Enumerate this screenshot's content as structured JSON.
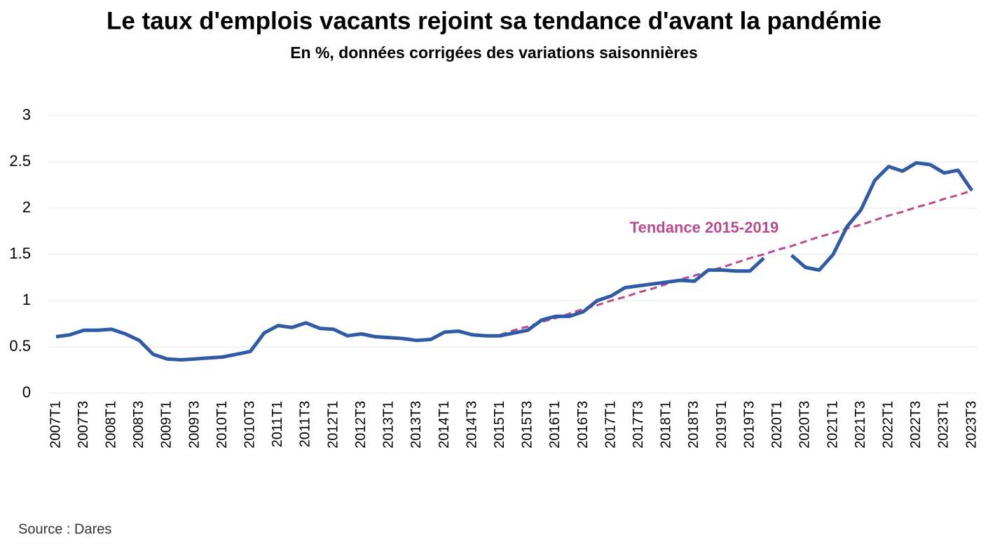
{
  "chart_data": {
    "type": "line",
    "title": "Le taux d'emplois vacants rejoint sa tendance d'avant la pandémie",
    "subtitle": "En %, données corrigées des variations saisonnières",
    "source": "Source : Dares",
    "categories": [
      "2007T1",
      null,
      "2007T3",
      null,
      "2008T1",
      null,
      "2008T3",
      null,
      "2009T1",
      null,
      "2009T3",
      null,
      "2010T1",
      null,
      "2010T3",
      null,
      "2011T1",
      null,
      "2011T3",
      null,
      "2012T1",
      null,
      "2012T3",
      null,
      "2013T1",
      null,
      "2013T3",
      null,
      "2014T1",
      null,
      "2014T3",
      null,
      "2015T1",
      null,
      "2015T3",
      null,
      "2016T1",
      null,
      "2016T3",
      null,
      "2017T1",
      null,
      "2017T3",
      null,
      "2018T1",
      null,
      "2018T3",
      null,
      "2019T1",
      null,
      "2019T3",
      null,
      "2020T1",
      null,
      "2020T3",
      null,
      "2021T1",
      null,
      "2021T3",
      null,
      "2022T1",
      null,
      "2022T3",
      null,
      "2023T1",
      null,
      "2023T3"
    ],
    "series": [
      {
        "name": "Taux d'emplois vacants",
        "color": "#2f5aa6",
        "values": [
          0.61,
          0.63,
          0.68,
          0.68,
          0.69,
          0.64,
          0.57,
          0.42,
          0.37,
          0.36,
          0.37,
          0.38,
          0.39,
          0.42,
          0.45,
          0.65,
          0.73,
          0.71,
          0.76,
          0.7,
          0.69,
          0.62,
          0.64,
          0.61,
          0.6,
          0.59,
          0.57,
          0.58,
          0.66,
          0.67,
          0.63,
          0.62,
          0.62,
          0.65,
          0.68,
          0.79,
          0.83,
          0.83,
          0.88,
          1.0,
          1.05,
          1.14,
          1.16,
          1.18,
          1.2,
          1.22,
          1.21,
          1.33,
          1.33,
          1.32,
          1.32,
          1.46,
          null,
          1.49,
          1.36,
          1.33,
          1.5,
          1.8,
          1.98,
          2.3,
          2.45,
          2.4,
          2.49,
          2.47,
          2.38,
          2.41,
          2.19
        ]
      },
      {
        "name": "Tendance 2015-2019",
        "color": "#b84c8c",
        "dashed": true,
        "values": [
          null,
          null,
          null,
          null,
          null,
          null,
          null,
          null,
          null,
          null,
          null,
          null,
          null,
          null,
          null,
          null,
          null,
          null,
          null,
          null,
          null,
          null,
          null,
          null,
          null,
          null,
          null,
          null,
          null,
          null,
          null,
          null,
          0.63,
          0.68,
          0.72,
          0.77,
          0.81,
          0.86,
          0.91,
          0.95,
          1.0,
          1.04,
          1.09,
          1.13,
          1.18,
          1.23,
          1.27,
          1.32,
          1.36,
          1.41,
          1.46,
          1.5,
          1.55,
          1.59,
          1.64,
          1.69,
          1.73,
          1.78,
          1.82,
          1.87,
          1.92,
          1.96,
          2.01,
          2.05,
          2.1,
          2.14,
          2.19
        ]
      }
    ],
    "ylim": [
      0,
      3
    ],
    "yticks": [
      0,
      0.5,
      1,
      1.5,
      2,
      2.5,
      3
    ],
    "grid": true
  }
}
